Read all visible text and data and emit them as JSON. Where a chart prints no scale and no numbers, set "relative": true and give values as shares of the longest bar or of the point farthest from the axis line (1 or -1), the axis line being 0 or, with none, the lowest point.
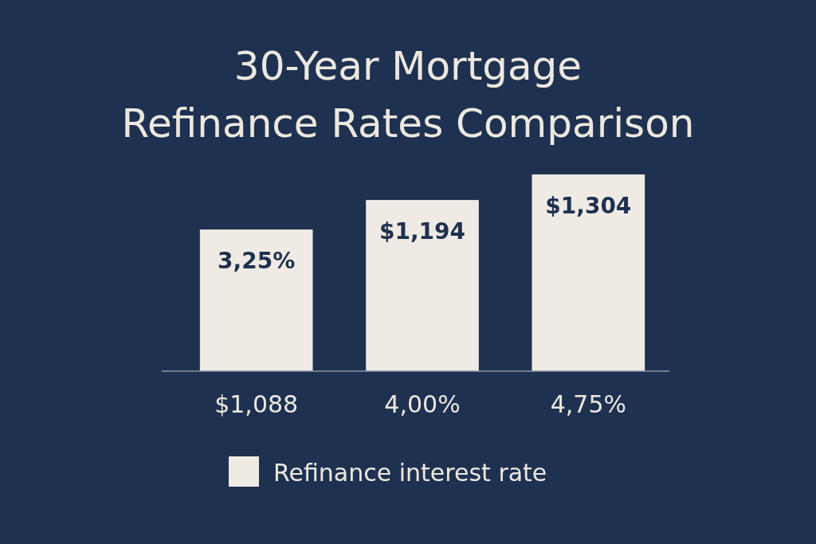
{
  "chart_data": {
    "type": "bar",
    "title": "30-Year Mortgage\nRefinance Rates Comparison",
    "relative": true,
    "categories": [
      "$1,088",
      "4,00%",
      "4,75%"
    ],
    "series": [
      {
        "name": "Refinance interest rate",
        "color": "#efebe4",
        "values": [
          0.72,
          0.87,
          1
        ]
      }
    ],
    "annotations": [
      "3,25%",
      "$1,194",
      "$1,304"
    ],
    "legend": "bottom"
  }
}
